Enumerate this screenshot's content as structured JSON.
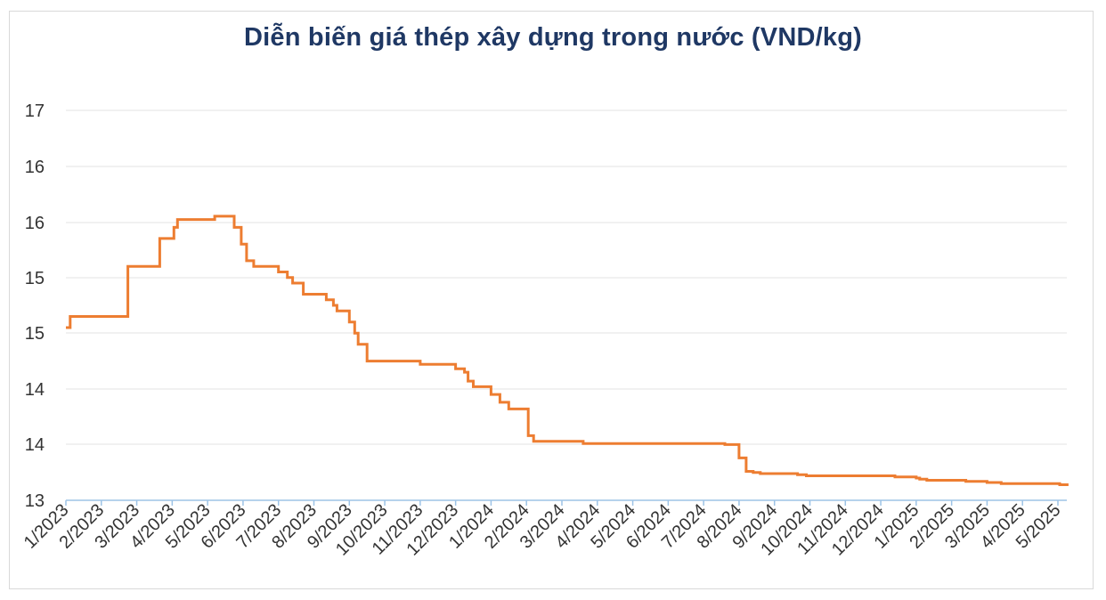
{
  "chart_data": {
    "type": "line",
    "title": "Diễn biến giá thép xây dựng trong nước (VND/kg)",
    "xlabel": "",
    "ylabel": "",
    "ytick_labels": [
      "13",
      "14",
      "14",
      "15",
      "15",
      "16",
      "16",
      "17"
    ],
    "ylim": [
      13,
      16.5
    ],
    "xtick_labels": [
      "1/2023",
      "2/2023",
      "3/2023",
      "4/2023",
      "5/2023",
      "6/2023",
      "7/2023",
      "8/2023",
      "9/2023",
      "10/2023",
      "11/2023",
      "12/2023",
      "1/2024",
      "2/2024",
      "3/2024",
      "4/2024",
      "5/2024",
      "6/2024",
      "7/2024",
      "8/2024",
      "9/2024",
      "10/2024",
      "11/2024",
      "12/2024",
      "1/2025",
      "2/2025",
      "3/2025",
      "4/2025",
      "5/2025"
    ],
    "grid": true,
    "line_color": "#ed7d31",
    "series": [
      {
        "x": [
          0.0,
          0.12,
          0.12,
          0.87,
          0.87,
          1.0,
          1.0,
          1.2,
          1.2,
          1.75,
          1.75,
          2.65,
          2.65,
          3.05,
          3.05,
          3.15,
          3.15,
          3.4,
          3.4,
          3.55,
          3.55,
          3.8,
          3.8,
          4.2,
          4.2,
          4.45,
          4.45,
          4.75,
          4.75,
          4.95,
          4.95,
          5.1,
          5.1,
          5.3,
          5.3,
          5.5,
          5.5,
          6.0,
          6.0,
          6.25,
          6.25,
          6.4,
          6.4,
          6.7,
          6.7,
          7.35,
          7.35,
          7.55,
          7.55,
          7.65,
          7.65,
          8.0,
          8.0,
          8.15,
          8.15,
          8.25,
          8.25,
          8.5,
          8.5,
          10.0,
          10.0,
          11.0,
          11.0,
          11.25,
          11.25,
          11.35,
          11.35,
          11.5,
          11.5,
          12.0,
          12.0,
          12.25,
          12.25,
          12.5,
          12.5,
          13.05,
          13.05,
          13.2,
          13.2,
          14.5,
          14.5,
          14.6,
          14.6,
          15.0,
          15.0,
          15.05,
          15.05,
          15.1,
          15.1,
          16.0,
          16.0,
          16.8,
          16.8,
          16.9,
          16.9,
          17.0,
          17.0,
          17.6,
          17.6,
          18.6,
          18.6,
          19.0,
          19.0,
          19.2,
          19.2,
          19.4,
          19.4,
          19.6,
          19.6,
          20.1,
          20.1,
          20.3,
          20.3,
          20.5,
          20.5,
          20.65,
          20.65,
          20.9,
          20.9,
          21.3,
          21.3,
          21.45,
          21.45,
          22.0,
          22.0,
          23.4,
          23.4,
          24.0,
          24.0,
          24.1,
          24.1,
          24.3,
          24.3,
          25.4,
          25.4,
          26.0,
          26.0,
          26.4,
          26.4,
          27.0,
          27.0,
          27.45,
          27.45,
          27.95,
          27.95,
          28.05,
          28.05,
          28.1,
          28.1,
          28.3
        ],
        "y": [
          14.55,
          14.55,
          14.65,
          14.65,
          14.65,
          14.65,
          14.65,
          14.65,
          14.65,
          14.65,
          15.1,
          15.1,
          15.35,
          15.35,
          15.45,
          15.45,
          15.52,
          15.52,
          15.52,
          15.52,
          15.52,
          15.52,
          15.52,
          15.52,
          15.55,
          15.55,
          15.55,
          15.55,
          15.45,
          15.45,
          15.3,
          15.3,
          15.15,
          15.15,
          15.1,
          15.1,
          15.1,
          15.1,
          15.05,
          15.05,
          15.0,
          15.0,
          14.95,
          14.95,
          14.85,
          14.85,
          14.8,
          14.8,
          14.75,
          14.75,
          14.7,
          14.7,
          14.6,
          14.6,
          14.5,
          14.5,
          14.4,
          14.4,
          14.25,
          14.25,
          14.22,
          14.22,
          14.18,
          14.18,
          14.15,
          14.15,
          14.07,
          14.07,
          14.02,
          14.02,
          13.95,
          13.95,
          13.88,
          13.88,
          13.82,
          13.82,
          13.58,
          13.58,
          13.53,
          13.53,
          13.53,
          13.53,
          13.51,
          13.51,
          13.51,
          13.51,
          13.51,
          13.51,
          13.51,
          13.51,
          13.51,
          13.51,
          13.51,
          13.51,
          13.51,
          13.51,
          13.51,
          13.51,
          13.51,
          13.51,
          13.5,
          13.5,
          13.38,
          13.38,
          13.26,
          13.26,
          13.25,
          13.25,
          13.24,
          13.24,
          13.24,
          13.24,
          13.24,
          13.24,
          13.24,
          13.24,
          13.23,
          13.23,
          13.22,
          13.22,
          13.22,
          13.22,
          13.22,
          13.22,
          13.22,
          13.22,
          13.21,
          13.21,
          13.2,
          13.2,
          13.19,
          13.19,
          13.18,
          13.18,
          13.17,
          13.17,
          13.16,
          13.16,
          13.15,
          13.15,
          13.15,
          13.15,
          13.15,
          13.15,
          13.15,
          13.15,
          13.14,
          13.14,
          13.14,
          13.14
        ],
        "note_values_are_stepped_price_levels": true
      }
    ]
  }
}
